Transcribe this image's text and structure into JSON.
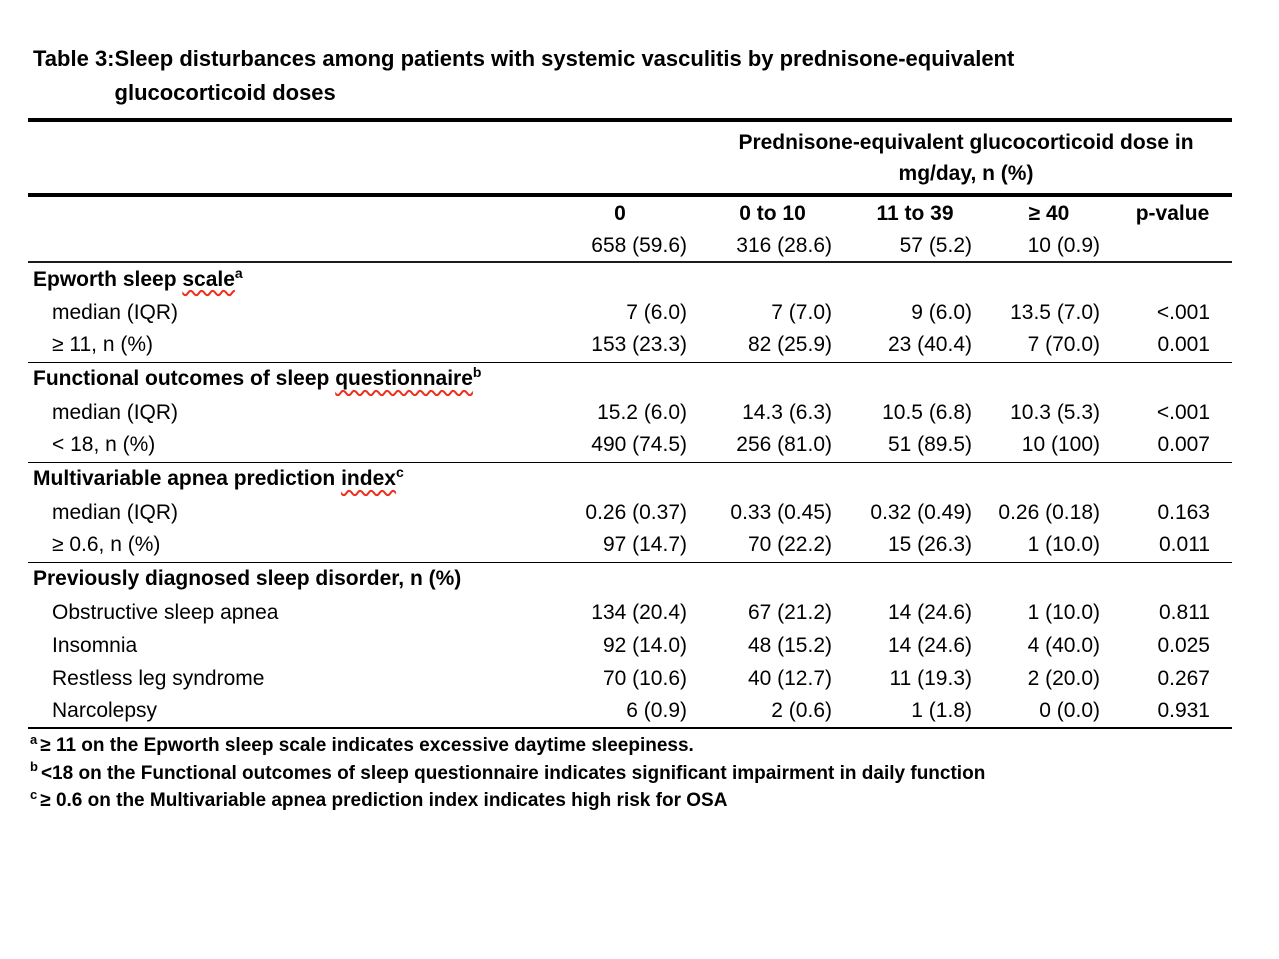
{
  "colors": {
    "squiggle": "#ee2f1e",
    "rule": "#000000",
    "text": "#000000",
    "background": "#ffffff"
  },
  "title": {
    "prefix": "Table 3:",
    "line1": "Sleep disturbances among patients with systemic vasculitis by prednisone-equivalent",
    "line2": "glucocorticoid doses"
  },
  "table": {
    "span_header": {
      "line1": "Prednisone-equivalent glucocorticoid dose in",
      "line2": "mg/day, n (%)"
    },
    "columns": [
      "0",
      "0 to 10",
      "11 to 39",
      "≥ 40",
      "p-value"
    ],
    "column_n": [
      "658 (59.6)",
      "316 (28.6)",
      "57 (5.2)",
      "10 (0.9)",
      ""
    ],
    "sections": [
      {
        "title_start": "Epworth sleep ",
        "title_mark": "scale",
        "sup": "a",
        "rows": [
          {
            "label": "median (IQR)",
            "values": [
              "7 (6.0)",
              "7 (7.0)",
              "9 (6.0)",
              "13.5 (7.0)",
              "<.001"
            ]
          },
          {
            "label": "≥ 11, n (%)",
            "values": [
              "153 (23.3)",
              "82 (25.9)",
              "23 (40.4)",
              "7 (70.0)",
              "0.001"
            ]
          }
        ]
      },
      {
        "title_start": "Functional outcomes of sleep ",
        "title_mark": "questionnaire",
        "sup": "b",
        "rows": [
          {
            "label": "median (IQR)",
            "values": [
              "15.2 (6.0)",
              "14.3 (6.3)",
              "10.5 (6.8)",
              "10.3 (5.3)",
              "<.001"
            ]
          },
          {
            "label": "< 18, n (%)",
            "values": [
              "490 (74.5)",
              "256 (81.0)",
              "51 (89.5)",
              "10 (100)",
              "0.007"
            ]
          }
        ]
      },
      {
        "title_start": "Multivariable apnea prediction ",
        "title_mark": "index",
        "sup": "c",
        "rows": [
          {
            "label": "median (IQR)",
            "values": [
              "0.26 (0.37)",
              "0.33 (0.45)",
              "0.32 (0.49)",
              "0.26 (0.18)",
              "0.163"
            ]
          },
          {
            "label": "≥ 0.6, n (%)",
            "values": [
              "97 (14.7)",
              "70 (22.2)",
              "15 (26.3)",
              "1 (10.0)",
              "0.011"
            ]
          }
        ]
      },
      {
        "title_start": "Previously diagnosed sleep disorder, n (%)",
        "title_mark": "",
        "sup": "",
        "rows": [
          {
            "label": "Obstructive sleep apnea",
            "values": [
              "134 (20.4)",
              "67 (21.2)",
              "14 (24.6)",
              "1 (10.0)",
              "0.811"
            ]
          },
          {
            "label": "Insomnia",
            "values": [
              "92 (14.0)",
              "48 (15.2)",
              "14 (24.6)",
              "4 (40.0)",
              "0.025"
            ]
          },
          {
            "label": "Restless leg syndrome",
            "values": [
              "70 (10.6)",
              "40 (12.7)",
              "11 (19.3)",
              "2 (20.0)",
              "0.267"
            ]
          },
          {
            "label": "Narcolepsy",
            "values": [
              "6 (0.9)",
              "2 (0.6)",
              "1 (1.8)",
              "0 (0.0)",
              "0.931"
            ]
          }
        ]
      }
    ]
  },
  "footnotes": [
    {
      "sup": "a",
      "text": "≥ 11 on the Epworth sleep scale indicates excessive daytime sleepiness."
    },
    {
      "sup": "b",
      "text": "<18 on the Functional outcomes of sleep questionnaire indicates significant impairment in daily function"
    },
    {
      "sup": "c",
      "text": "≥ 0.6 on the Multivariable apnea prediction index indicates high risk for OSA"
    }
  ]
}
